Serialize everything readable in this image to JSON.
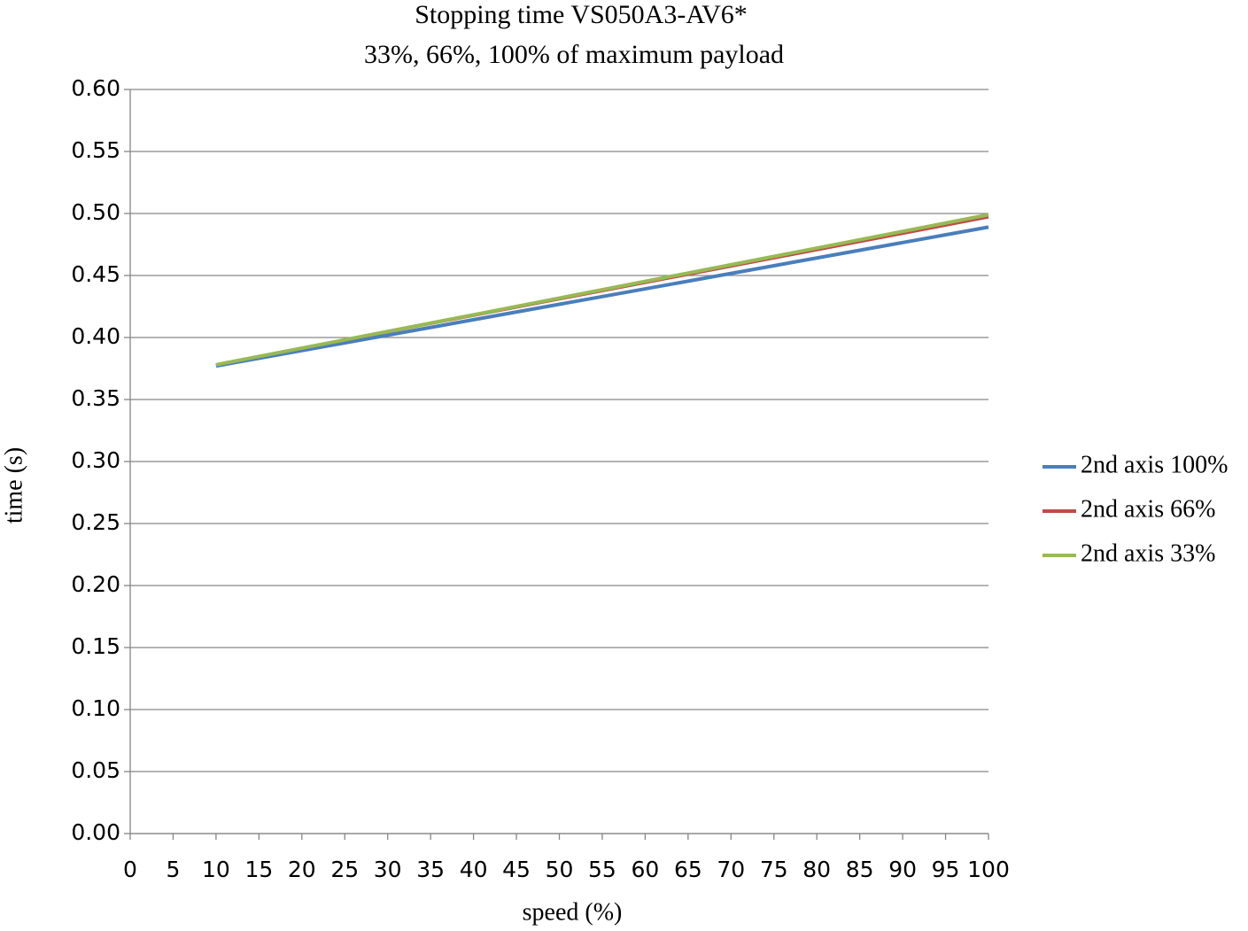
{
  "chart_data": {
    "type": "line",
    "title": "Stopping time VS050A3-AV6*",
    "subtitle": "33%, 66%, 100% of maximum payload",
    "x_label": "speed (%)",
    "y_label": "time (s)",
    "xlim": [
      0,
      100
    ],
    "xticks": [
      0,
      5,
      10,
      15,
      20,
      25,
      30,
      35,
      40,
      45,
      50,
      55,
      60,
      65,
      70,
      75,
      80,
      85,
      90,
      95,
      100
    ],
    "ylim": [
      0,
      0.6
    ],
    "yticks": [
      {
        "value": 0,
        "label": "0.00"
      },
      {
        "value": 0.05,
        "label": "0.05"
      },
      {
        "value": 0.1,
        "label": "0.10"
      },
      {
        "value": 0.15,
        "label": "0.15"
      },
      {
        "value": 0.2,
        "label": "0.20"
      },
      {
        "value": 0.25,
        "label": "0.25"
      },
      {
        "value": 0.3,
        "label": "0.30"
      },
      {
        "value": 0.35,
        "label": "0.35"
      },
      {
        "value": 0.4,
        "label": "0.40"
      },
      {
        "value": 0.45,
        "label": "0.45"
      },
      {
        "value": 0.5,
        "label": "0.50"
      },
      {
        "value": 0.55,
        "label": "0.55"
      },
      {
        "value": 0.6,
        "label": "0.60"
      }
    ],
    "grid": true,
    "legend": "right",
    "x": [
      10,
      100
    ],
    "series": [
      {
        "name": "2nd axis 100%",
        "color": "#4a7ebb",
        "values": [
          0.377,
          0.489
        ]
      },
      {
        "name": "2nd axis 66%",
        "color": "#be4b48",
        "values": [
          0.378,
          0.497
        ]
      },
      {
        "name": "2nd axis 33%",
        "color": "#98b954",
        "values": [
          0.378,
          0.499
        ]
      }
    ]
  }
}
